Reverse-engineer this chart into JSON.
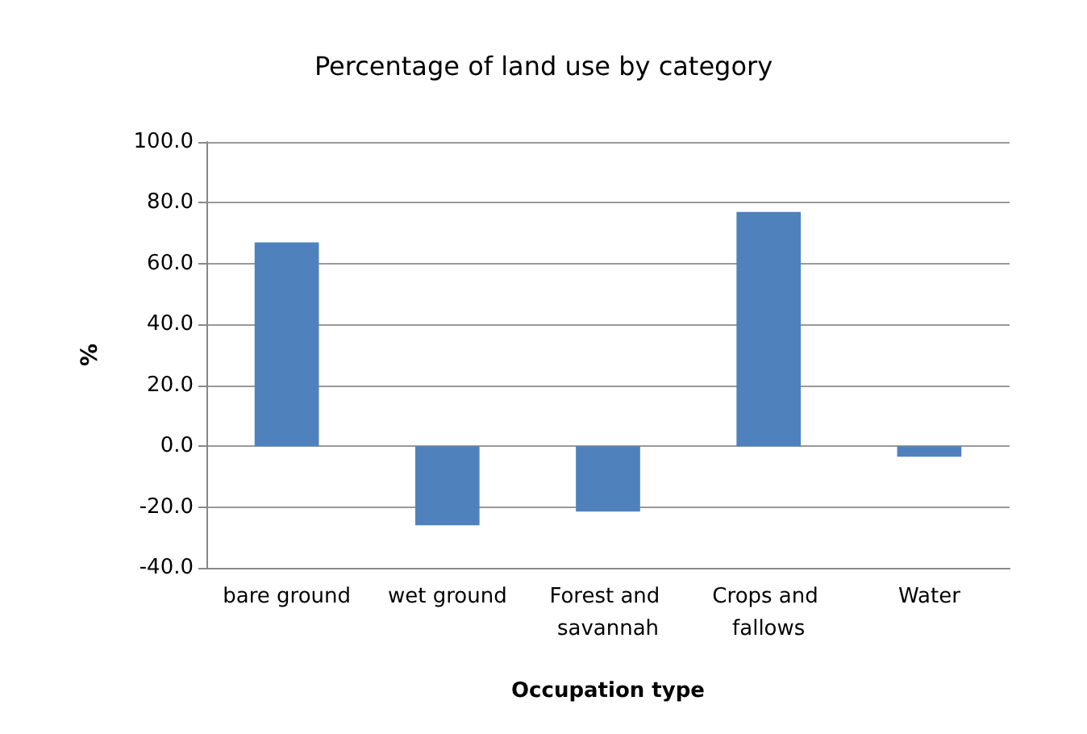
{
  "chart_data": {
    "type": "bar",
    "title": "Percentage of land use by category",
    "xlabel": "Occupation type",
    "ylabel": "%",
    "categories": [
      "bare ground",
      "wet ground",
      "Forest and savannah",
      "Crops and fallows",
      "Water"
    ],
    "values": [
      67,
      -26,
      -21.5,
      77,
      -3.5
    ],
    "color": "#4f81bd",
    "ylim": [
      -40,
      100
    ],
    "yticks": [
      {
        "value": -40,
        "label": "-40.0"
      },
      {
        "value": -20,
        "label": "-20.0"
      },
      {
        "value": 0,
        "label": "0.0"
      },
      {
        "value": 20,
        "label": "20.0"
      },
      {
        "value": 40,
        "label": "40.0"
      },
      {
        "value": 60,
        "label": "60.0"
      },
      {
        "value": 80,
        "label": "80.0"
      },
      {
        "value": 100,
        "label": "100.0"
      }
    ],
    "grid": true
  }
}
